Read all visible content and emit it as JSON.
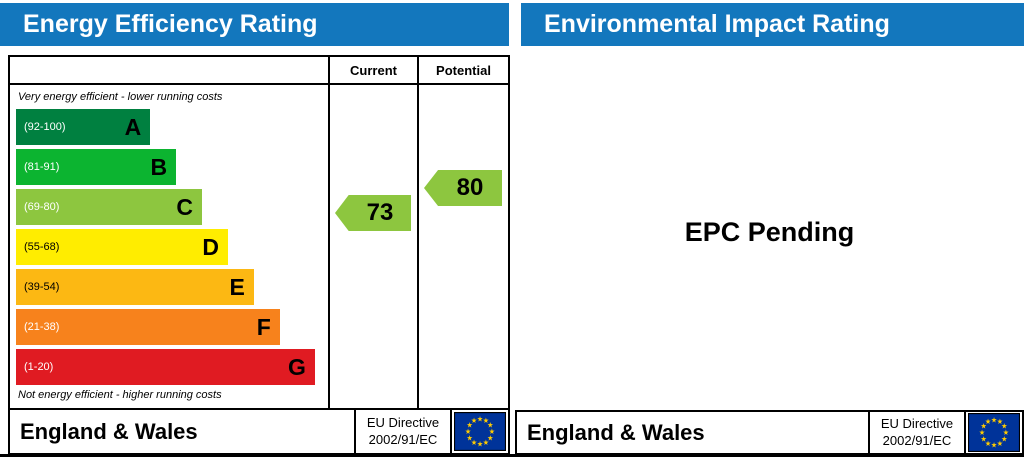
{
  "colors": {
    "header_blue": "#1377bd",
    "flag_blue": "#003399",
    "star_yellow": "#ffcc00",
    "arrow_green": "#8dc63f"
  },
  "headers": {
    "left": "Energy Efficiency Rating",
    "right": "Environmental Impact Rating"
  },
  "chart": {
    "columns": {
      "current": "Current",
      "potential": "Potential"
    },
    "top_note": "Very energy efficient - lower running costs",
    "bottom_note": "Not energy efficient - higher running costs",
    "current_value": "73",
    "potential_value": "80"
  },
  "bands": [
    {
      "range": "(92-100)",
      "label": "A",
      "color": "#008040",
      "text_color": "#ffffff",
      "width_pct": 44
    },
    {
      "range": "(81-91)",
      "label": "B",
      "color": "#0cb430",
      "text_color": "#ffffff",
      "width_pct": 52.5
    },
    {
      "range": "(69-80)",
      "label": "C",
      "color": "#8dc63f",
      "text_color": "#ffffff",
      "width_pct": 61
    },
    {
      "range": "(55-68)",
      "label": "D",
      "color": "#ffed00",
      "text_color": "#000000",
      "width_pct": 69.5
    },
    {
      "range": "(39-54)",
      "label": "E",
      "color": "#fcb813",
      "text_color": "#000000",
      "width_pct": 78
    },
    {
      "range": "(21-38)",
      "label": "F",
      "color": "#f7821c",
      "text_color": "#ffffff",
      "width_pct": 86.5
    },
    {
      "range": "(1-20)",
      "label": "G",
      "color": "#e01b22",
      "text_color": "#ffffff",
      "width_pct": 98
    }
  ],
  "footer": {
    "region": "England & Wales",
    "directive_line1": "EU Directive",
    "directive_line2": "2002/91/EC"
  },
  "right_panel": {
    "pending_text": "EPC Pending"
  },
  "chart_data": {
    "type": "bar",
    "title": "Energy Efficiency Rating",
    "bands": [
      {
        "grade": "A",
        "min": 92,
        "max": 100
      },
      {
        "grade": "B",
        "min": 81,
        "max": 91
      },
      {
        "grade": "C",
        "min": 69,
        "max": 80
      },
      {
        "grade": "D",
        "min": 55,
        "max": 68
      },
      {
        "grade": "E",
        "min": 39,
        "max": 54
      },
      {
        "grade": "F",
        "min": 21,
        "max": 38
      },
      {
        "grade": "G",
        "min": 1,
        "max": 20
      }
    ],
    "current": 73,
    "current_band": "C",
    "potential": 80,
    "potential_band": "C",
    "environmental_impact_status": "EPC Pending",
    "legend_position": "none",
    "grid": false
  }
}
